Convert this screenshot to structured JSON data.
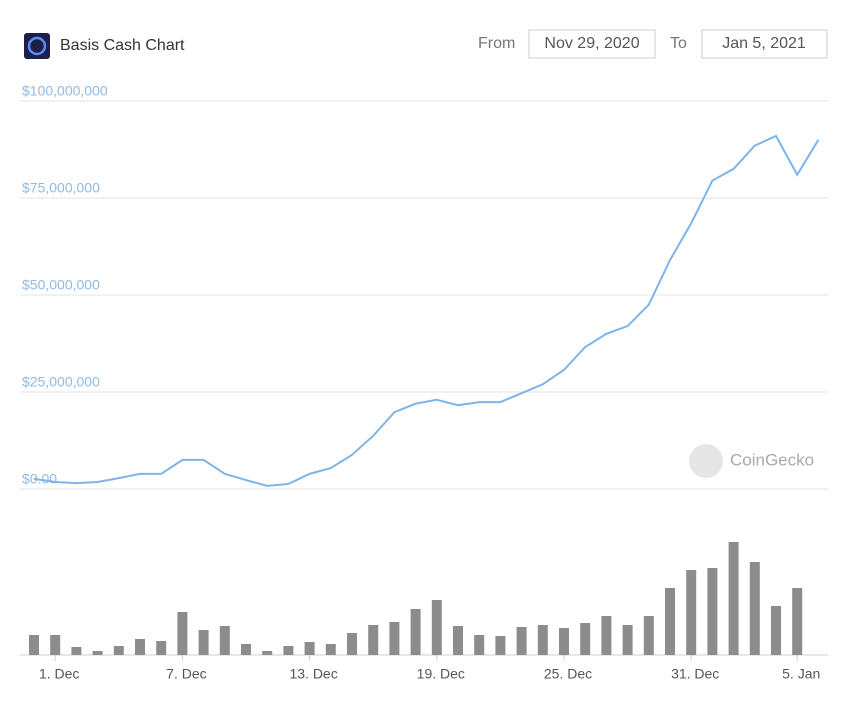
{
  "chart_data": {
    "type": "line",
    "title": "Basis Cash Chart",
    "range_picker": {
      "from_label": "From",
      "from": "Nov 29, 2020",
      "to_label": "To",
      "to": "Jan 5, 2021"
    },
    "watermark": "CoinGecko",
    "categories": [
      null,
      "1. Dec",
      null,
      null,
      null,
      null,
      null,
      "7. Dec",
      null,
      null,
      null,
      null,
      null,
      "13. Dec",
      null,
      null,
      null,
      null,
      null,
      "19. Dec",
      null,
      null,
      null,
      null,
      null,
      "25. Dec",
      null,
      null,
      null,
      null,
      null,
      "31. Dec",
      null,
      null,
      null,
      null,
      "5. Jan",
      null
    ],
    "series": [
      {
        "color": "#7cb5ec",
        "values": [
          2600000,
          1800000,
          1500000,
          1800000,
          2800000,
          3900000,
          3900000,
          7500000,
          7500000,
          3900000,
          2300000,
          800000,
          1300000,
          3900000,
          5400000,
          8800000,
          13700000,
          19800000,
          22000000,
          23000000,
          21600000,
          22400000,
          22400000,
          24700000,
          27000000,
          30700000,
          36600000,
          40000000,
          42000000,
          47500000,
          59000000,
          68500000,
          79500000,
          82500000,
          88500000,
          91000000,
          81000000,
          90000000
        ]
      },
      {
        "type": "bar",
        "axis": "y2",
        "color": "#8c8c8c",
        "values": [
          20,
          20,
          8,
          4,
          9,
          16,
          14,
          43,
          25,
          29,
          11,
          4,
          9,
          13,
          11,
          22,
          30,
          33,
          46,
          55,
          29,
          20,
          19,
          28,
          30,
          27,
          32,
          39,
          30,
          39,
          67,
          85,
          87,
          113,
          93,
          49,
          67,
          null
        ]
      }
    ],
    "ylim": [
      0,
      100000000
    ],
    "yticks": [
      {
        "value": 0,
        "label": "$0.00"
      },
      {
        "value": 25000000,
        "label": "$25,000,000"
      },
      {
        "value": 50000000,
        "label": "$50,000,000"
      },
      {
        "value": 75000000,
        "label": "$75,000,000"
      },
      {
        "value": 100000000,
        "label": "$100,000,000"
      }
    ],
    "y2lim": [
      0,
      120
    ],
    "grid": true
  }
}
